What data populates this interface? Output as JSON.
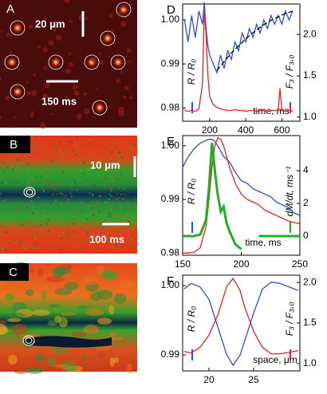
{
  "panels": [
    {
      "label": "A",
      "scale_labels": [
        "20 μm",
        "150 ms"
      ]
    },
    {
      "label": "B",
      "scale_labels": [
        "10 μm",
        "100 ms"
      ]
    },
    {
      "label": "C"
    }
  ],
  "chart_data": [
    {
      "type": "line",
      "label": "D",
      "xlabel": "time, ms",
      "ylabel": "R / R₀",
      "y2label": "F₃ / F₃,₀",
      "xlim": [
        50,
        700
      ],
      "xticks": [
        200,
        400,
        600
      ],
      "ylim": [
        0.977,
        1.0036
      ],
      "yticks": [
        0.98,
        0.99,
        {
          "value": 1,
          "label": "1.00"
        }
      ],
      "y2lim": [
        0.95,
        2.37
      ],
      "y2ticks": [
        {
          "value": 1,
          "label": "1.0"
        },
        1.5,
        {
          "value": 2,
          "label": "2.0"
        }
      ],
      "x": [
        60,
        80,
        100,
        120,
        140,
        160,
        170,
        180,
        190,
        200,
        220,
        240,
        260,
        280,
        300,
        320,
        340,
        360,
        380,
        400,
        420,
        440,
        460,
        480,
        500,
        520,
        540,
        560,
        580,
        590,
        600,
        620,
        640,
        660
      ],
      "series": [
        {
          "name": "R / R₀",
          "color": "#2a4fd8",
          "values": [
            1.0,
            0.995,
            1.001,
            0.996,
            1.002,
            0.999,
            1.004,
            0.998,
            0.994,
            0.992,
            0.99,
            0.988,
            0.992,
            0.989,
            0.993,
            0.991,
            0.995,
            0.993,
            0.997,
            0.995,
            0.998,
            0.996,
            0.999,
            0.997,
            1.0,
            0.998,
            1.001,
            0.999,
            1.001,
            1.0,
            0.999,
            1.002,
            1.0,
            1.002
          ]
        },
        {
          "name": "F₃ / F₃,₀",
          "color": "#e82020",
          "axis": "y2",
          "values": [
            1.08,
            1.07,
            1.08,
            1.07,
            1.1,
            1.4,
            2.3,
            2.0,
            1.5,
            1.25,
            1.15,
            1.12,
            1.1,
            1.09,
            1.08,
            1.08,
            1.09,
            1.08,
            1.08,
            1.07,
            1.08,
            1.08,
            1.07,
            1.08,
            1.08,
            1.07,
            1.08,
            1.08,
            1.08,
            1.35,
            1.08,
            1.07,
            1.08,
            1.07
          ]
        },
        {
          "name": "fit",
          "color": "#000000",
          "dashed": true,
          "values": [
            null,
            null,
            null,
            null,
            null,
            null,
            null,
            null,
            null,
            null,
            null,
            0.9885,
            0.9895,
            0.9905,
            0.9915,
            0.9925,
            0.9933,
            0.9941,
            0.9949,
            0.9957,
            0.9964,
            0.9971,
            0.9977,
            0.9983,
            0.9989,
            0.9994,
            0.9999,
            1.0003,
            1.0007,
            1.0009,
            1.0011,
            1.0014,
            1.0017,
            1.002
          ]
        }
      ]
    },
    {
      "type": "line",
      "label": "E",
      "xlabel": "time, ms",
      "ylabel": "R / R₀",
      "y2label": "dM/dt, ms⁻¹",
      "xlim": [
        150,
        250
      ],
      "xticks": [
        150,
        200,
        250
      ],
      "ylim": [
        0.9796,
        1.0019
      ],
      "yticks": [
        0.98,
        0.99,
        {
          "value": 1,
          "label": "1.00"
        }
      ],
      "y2lim": [
        -1.17,
        6.15
      ],
      "y2ticks": [
        0,
        2,
        4
      ],
      "x": [
        150,
        155,
        160,
        165,
        170,
        172.5,
        175,
        177.5,
        180,
        182.5,
        185,
        187.5,
        190,
        195,
        200,
        205,
        210,
        215,
        220,
        225,
        230,
        235,
        240,
        245,
        250
      ],
      "series": [
        {
          "name": "R / R₀",
          "color": "#2a4fd8",
          "values": [
            0.996,
            0.998,
            0.9995,
            1.0005,
            1.001,
            1.0012,
            1.0012,
            1.0008,
            1.0,
            0.999,
            0.998,
            0.9975,
            0.997,
            0.995,
            0.9935,
            0.993,
            0.992,
            0.9915,
            0.991,
            0.9905,
            0.9895,
            0.989,
            0.9885,
            0.9875,
            0.987
          ]
        },
        {
          "name": "F₃",
          "color": "#e82020",
          "values": [
            0.98,
            0.98,
            0.9802,
            0.981,
            0.985,
            0.99,
            0.996,
            1.0,
            1.0015,
            1.0012,
            1.0,
            0.998,
            0.996,
            0.993,
            0.991,
            0.99,
            0.9895,
            0.989,
            0.988,
            0.9875,
            0.987,
            0.9865,
            0.986,
            0.9857,
            0.9855
          ]
        },
        {
          "name": "dM/dt",
          "color": "#22b022",
          "axis": "y2",
          "width": 3,
          "values": [
            0,
            0,
            0,
            0.1,
            1,
            3,
            5.7,
            4,
            2.5,
            1.5,
            1.8,
            0.8,
            0.3,
            -0.5,
            -0.8,
            null,
            null,
            0,
            0,
            0,
            0,
            0,
            0,
            0,
            0
          ]
        }
      ]
    },
    {
      "type": "line",
      "label": "F",
      "xlabel": "space, μm",
      "ylabel": "R / R₀",
      "y2label": "F₃ / F₃,₀",
      "xlim": [
        17.05,
        30.2
      ],
      "xticks": [
        20,
        25
      ],
      "ylim": [
        0.9877,
        1.0015
      ],
      "yticks": [
        0.99,
        {
          "value": 1,
          "label": "1.00"
        }
      ],
      "y2lim": [
        0.91,
        2.09
      ],
      "y2ticks": [
        {
          "value": 1,
          "label": "1.0"
        },
        1.5,
        {
          "value": 2,
          "label": "2.0"
        }
      ],
      "x": [
        17.2,
        18,
        19,
        20,
        21,
        22,
        22.7,
        23.5,
        24,
        25,
        26,
        27,
        28,
        29,
        30
      ],
      "series": [
        {
          "name": "R / R₀",
          "color": "#2a4fd8",
          "values": [
            0.9995,
            1.0003,
            0.9998,
            0.998,
            0.994,
            0.99,
            0.9885,
            0.99,
            0.992,
            0.996,
            0.9995,
            1.0005,
            1.0003,
            0.9998,
            0.9993
          ]
        },
        {
          "name": "F₃ / F₃,₀",
          "color": "#e82020",
          "axis": "y2",
          "values": [
            1.15,
            1.13,
            1.2,
            1.35,
            1.6,
            1.95,
            2.05,
            1.9,
            1.7,
            1.4,
            1.2,
            1.12,
            1.12,
            1.14,
            1.16
          ]
        }
      ]
    }
  ]
}
